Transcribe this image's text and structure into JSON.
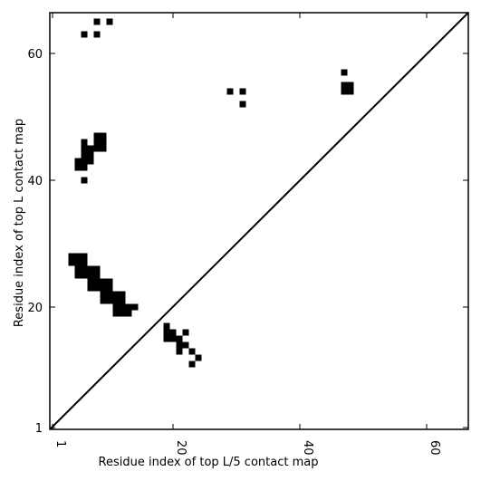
{
  "chart_data": {
    "type": "heatmap",
    "xlabel": "Residue index of top L/5 contact map",
    "ylabel": "Residue index of top L contact map",
    "xlim": [
      1,
      67
    ],
    "ylim": [
      1,
      67
    ],
    "x_ticks": [
      1,
      20,
      40,
      60
    ],
    "y_ticks": [
      1,
      20,
      40,
      60
    ],
    "x_tick_rotation_deg": -90,
    "diagonal_line": true,
    "cell_color": "#000000",
    "background_color": "#ffffff",
    "series": [
      {
        "name": "top L contact map (upper-left triangle)",
        "cells": [
          [
            8,
            65
          ],
          [
            10,
            65
          ],
          [
            6,
            63
          ],
          [
            8,
            63
          ],
          [
            29,
            54
          ],
          [
            31,
            54
          ],
          [
            31,
            52
          ],
          [
            47,
            57
          ],
          [
            47,
            55
          ],
          [
            48,
            55
          ],
          [
            47,
            54
          ],
          [
            48,
            54
          ],
          [
            6,
            46
          ],
          [
            8,
            47
          ],
          [
            9,
            47
          ],
          [
            7,
            45
          ],
          [
            8,
            46
          ],
          [
            9,
            46
          ],
          [
            8,
            45
          ],
          [
            9,
            45
          ],
          [
            6,
            45
          ],
          [
            6,
            44
          ],
          [
            7,
            44
          ],
          [
            6,
            43
          ],
          [
            7,
            43
          ],
          [
            5,
            43
          ],
          [
            5,
            42
          ],
          [
            6,
            42
          ],
          [
            6,
            40
          ],
          [
            4,
            28
          ],
          [
            5,
            28
          ],
          [
            6,
            28
          ],
          [
            4,
            27
          ],
          [
            5,
            27
          ],
          [
            6,
            27
          ],
          [
            5,
            26
          ],
          [
            6,
            26
          ],
          [
            7,
            26
          ],
          [
            8,
            26
          ],
          [
            5,
            25
          ],
          [
            6,
            25
          ],
          [
            7,
            25
          ],
          [
            8,
            25
          ],
          [
            7,
            24
          ],
          [
            8,
            24
          ],
          [
            9,
            24
          ],
          [
            10,
            24
          ],
          [
            7,
            23
          ],
          [
            8,
            23
          ],
          [
            9,
            23
          ],
          [
            10,
            23
          ],
          [
            9,
            22
          ],
          [
            10,
            22
          ],
          [
            11,
            22
          ],
          [
            12,
            22
          ],
          [
            9,
            21
          ],
          [
            10,
            21
          ],
          [
            11,
            21
          ],
          [
            12,
            21
          ],
          [
            11,
            20
          ],
          [
            12,
            20
          ],
          [
            13,
            20
          ],
          [
            14,
            20
          ],
          [
            11,
            19
          ],
          [
            12,
            19
          ],
          [
            13,
            19
          ]
        ]
      },
      {
        "name": "top L/5 contact map (lower-right triangle)",
        "cells": [
          [
            19,
            16
          ],
          [
            19,
            17
          ],
          [
            20,
            16
          ],
          [
            19,
            15
          ],
          [
            20,
            15
          ],
          [
            21,
            15
          ],
          [
            22,
            16
          ],
          [
            21,
            14
          ],
          [
            22,
            14
          ],
          [
            21,
            13
          ],
          [
            23,
            13
          ],
          [
            24,
            12
          ],
          [
            23,
            11
          ]
        ]
      }
    ]
  }
}
